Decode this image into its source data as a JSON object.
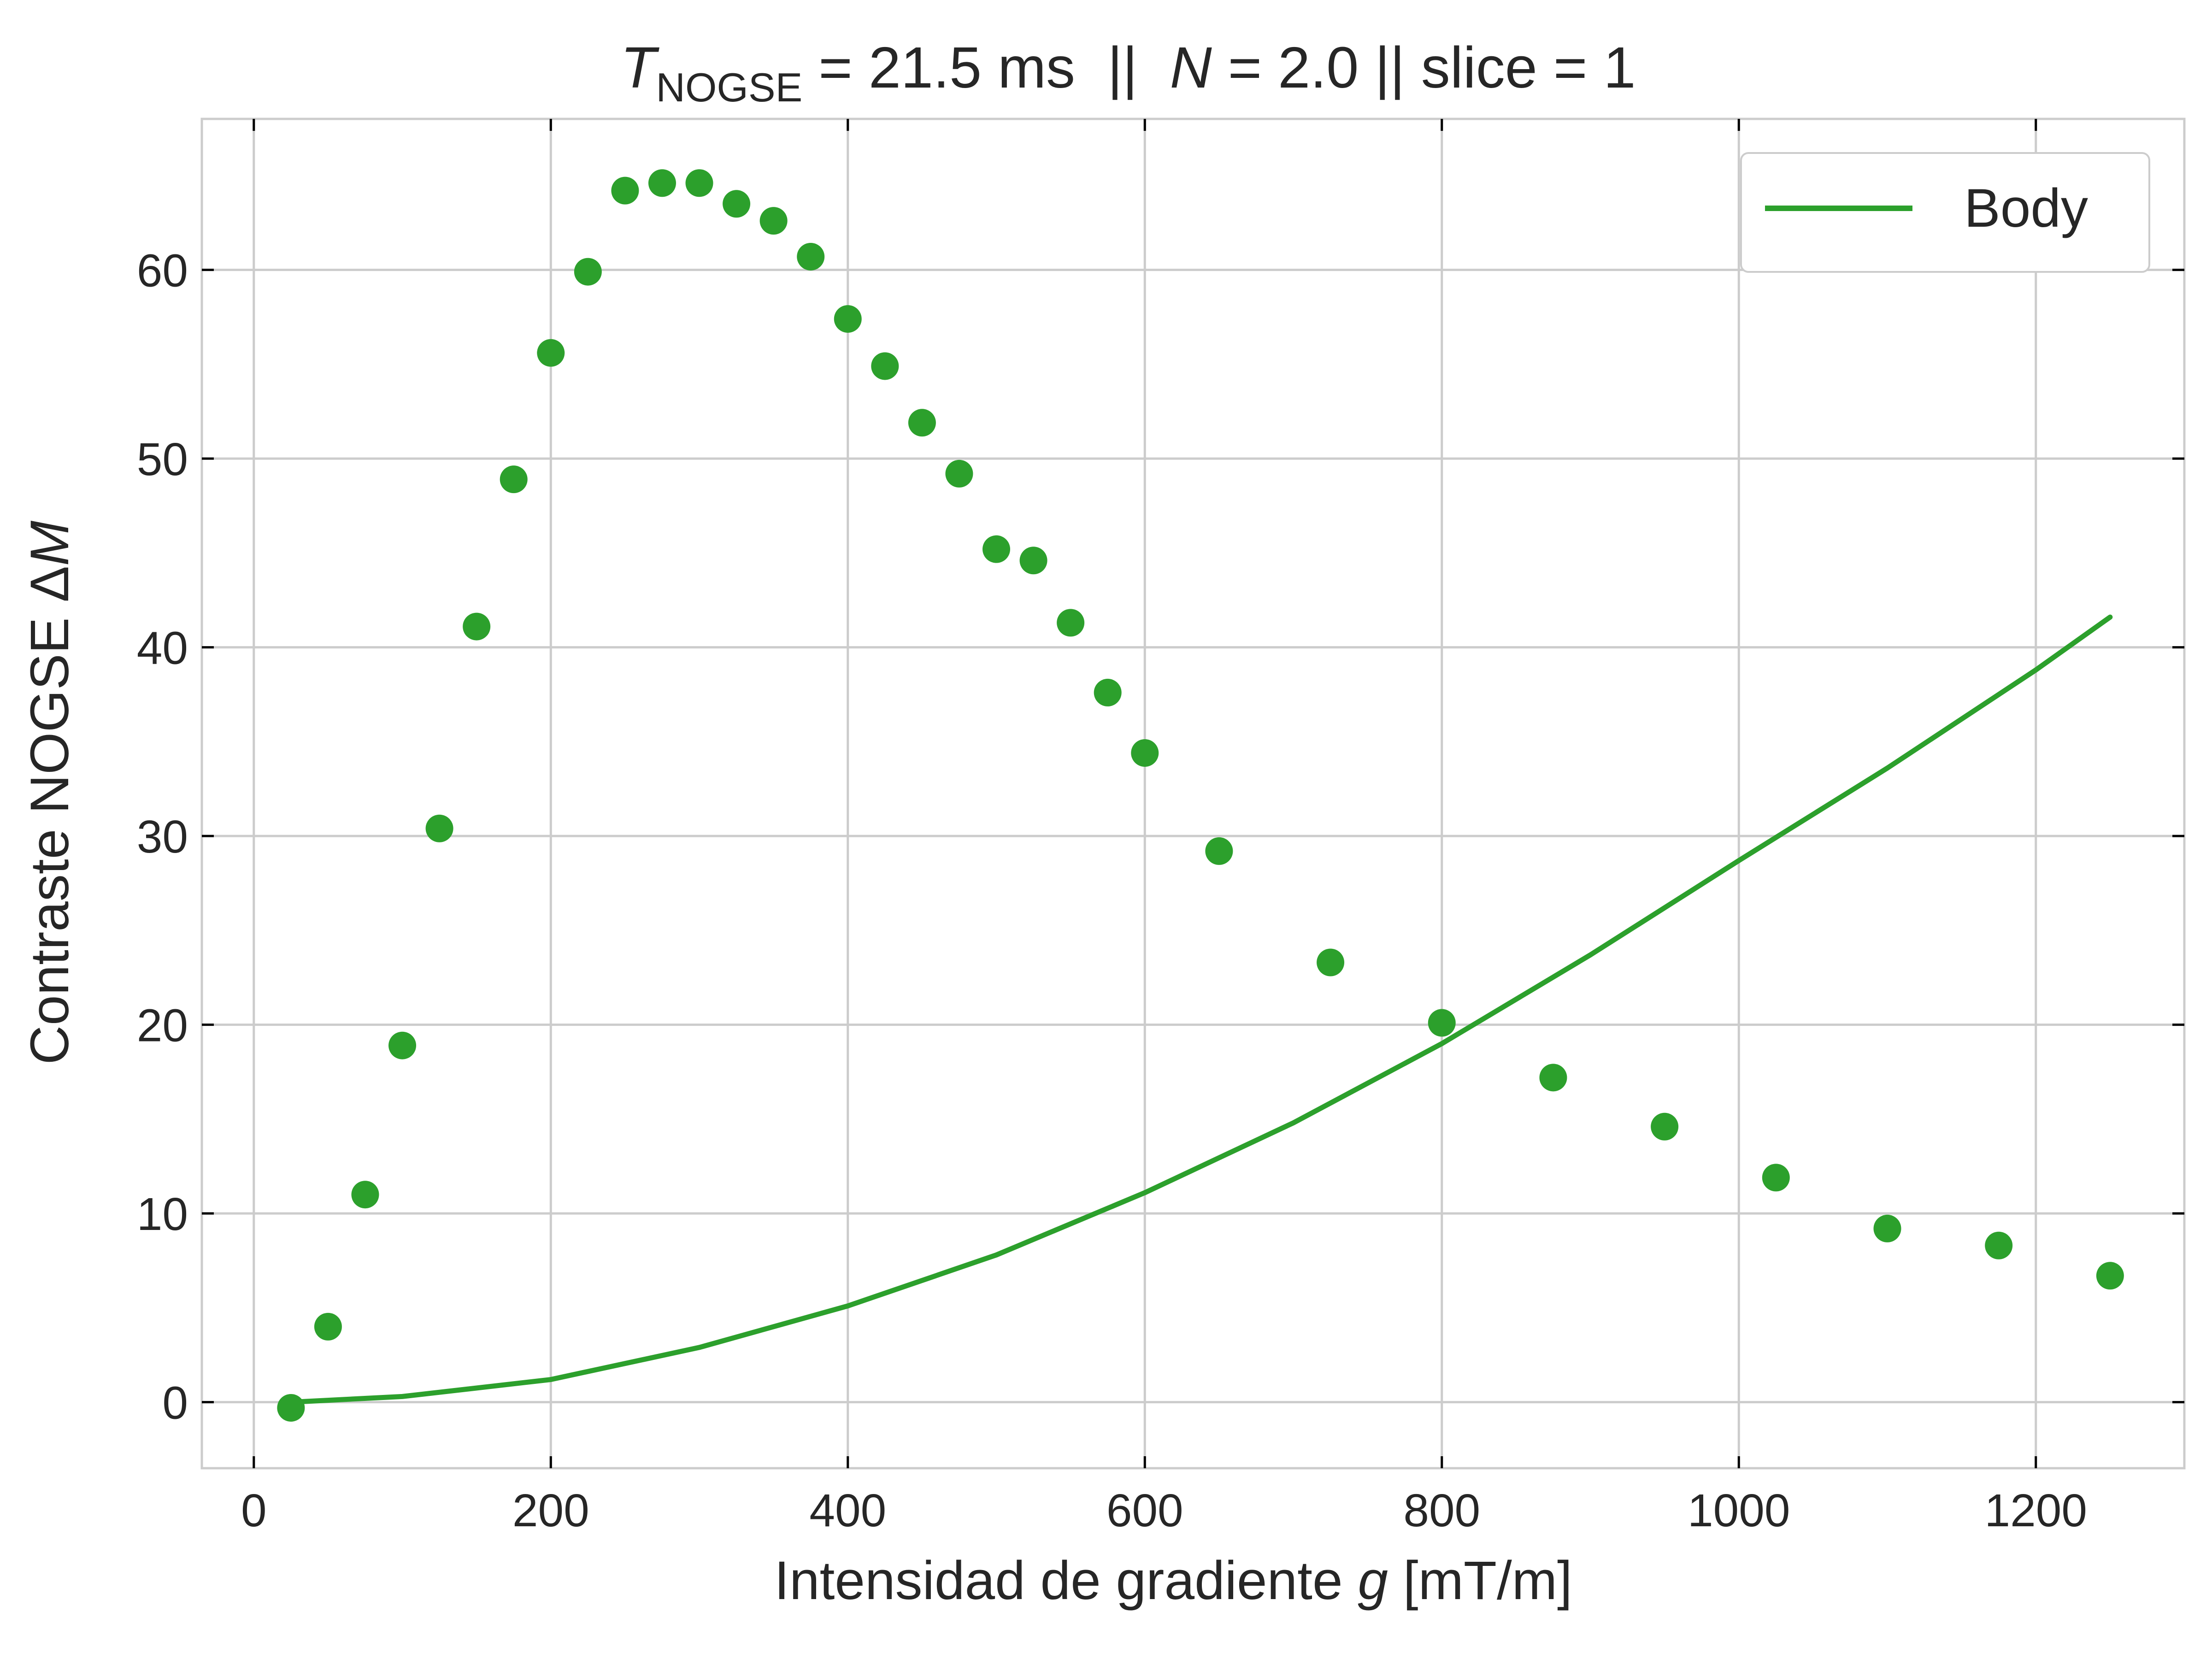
{
  "chart_data": {
    "type": "scatter",
    "title": {
      "t_symbol": "T",
      "t_subscript": "NOGSE",
      "part1": " = 21.5 ms  ||  ",
      "n_symbol": "N",
      "part2": " = 2.0 || slice = 1"
    },
    "xlabel": {
      "prefix": "Intensidad de gradiente ",
      "symbol": "g",
      "suffix": " [mT/m]"
    },
    "ylabel": {
      "prefix": "Contraste NOGSE Δ",
      "symbol": "M"
    },
    "xlim": [
      -35,
      1300
    ],
    "ylim": [
      -3.5,
      68
    ],
    "xticks": [
      0,
      200,
      400,
      600,
      800,
      1000,
      1200
    ],
    "yticks": [
      0,
      10,
      20,
      30,
      40,
      50,
      60
    ],
    "grid": true,
    "legend": {
      "position": "top-right",
      "entries": [
        {
          "label": "Body",
          "marker": "line"
        }
      ]
    },
    "colors": {
      "series": "#2ca02c",
      "grid": "#cccccc",
      "frame": "#cccccc",
      "text": "#262626"
    },
    "series": [
      {
        "kind": "points",
        "x": [
          25,
          50,
          75,
          100,
          125,
          150,
          175,
          200,
          225,
          250,
          275,
          300,
          325,
          350,
          375,
          400,
          425,
          450,
          475,
          500,
          525,
          550,
          575,
          600,
          650,
          725,
          800,
          875,
          950,
          1025,
          1100,
          1175,
          1250
        ],
        "y": [
          -0.3,
          4.0,
          11.0,
          18.9,
          30.4,
          41.1,
          48.9,
          55.6,
          59.9,
          64.2,
          64.6,
          64.6,
          63.5,
          62.6,
          60.7,
          57.4,
          54.9,
          51.9,
          49.2,
          45.2,
          44.6,
          41.3,
          37.6,
          34.4,
          29.2,
          23.3,
          20.1,
          17.2,
          14.6,
          11.9,
          9.2,
          8.3,
          6.7
        ]
      },
      {
        "name": "Body",
        "kind": "line",
        "x": [
          25,
          100,
          200,
          300,
          400,
          500,
          600,
          700,
          800,
          900,
          1000,
          1100,
          1200,
          1250
        ],
        "y": [
          0.0,
          0.3,
          1.2,
          2.9,
          5.1,
          7.8,
          11.1,
          14.8,
          19.0,
          23.7,
          28.7,
          33.6,
          38.8,
          41.6
        ]
      }
    ]
  }
}
